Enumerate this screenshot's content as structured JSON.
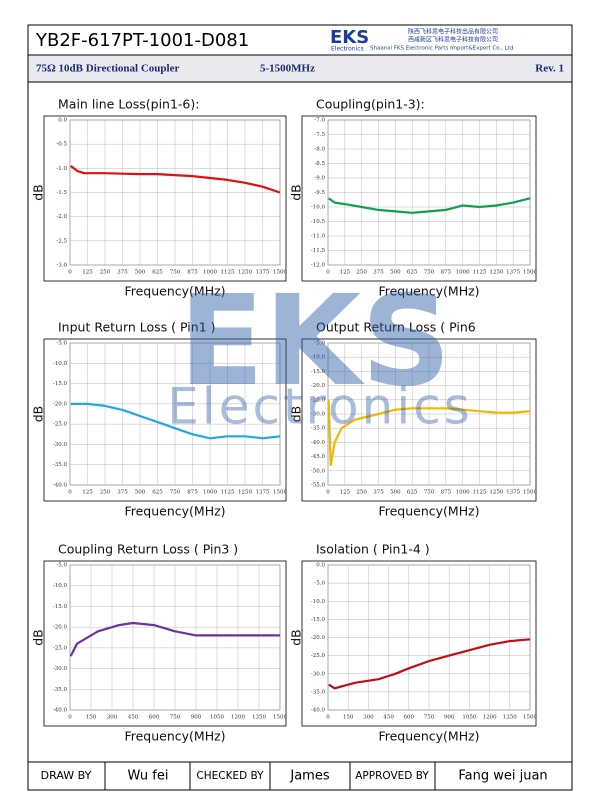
{
  "header": {
    "doc_no": "YB2F-617PT-1001-D081",
    "logo": "EKS",
    "logo_sub": "Electronics",
    "company_cn_1": "陕西飞科思电子科技出品有限公司",
    "company_cn_2": "西咸新区飞科思电子科技有限公司",
    "company_en": "Shaanxi FKS Electronic Parts Import&Export Co., Ltd",
    "product": "75Ω  10dB Directional Coupler",
    "band": "5-1500MHz",
    "rev": "Rev. 1"
  },
  "watermark": {
    "big": "EKS",
    "small": "Electronics"
  },
  "footer": {
    "draw_label": "DRAW BY",
    "draw": "Wu fei",
    "check_label": "CHECKED BY",
    "check": "James",
    "approve_label": "APPROVED BY",
    "approve": "Fang wei juan"
  },
  "chart_data": [
    {
      "type": "line",
      "title": "Main line Loss(pin1-6):",
      "xlabel": "Frequency(MHz)",
      "ylabel": "dB",
      "color": "#e01010",
      "xlim": [
        0,
        1500
      ],
      "xticks": [
        0,
        125,
        250,
        375,
        500,
        625,
        750,
        875,
        1000,
        1125,
        1250,
        1375,
        1500
      ],
      "ylim": [
        -3,
        0
      ],
      "yticks": [
        {
          "value": 0,
          "label": "0.0"
        },
        {
          "value": -0.5,
          "label": "-0.5"
        },
        {
          "value": -1,
          "label": "-1.0"
        },
        {
          "value": -1.5,
          "label": "-1.5"
        },
        {
          "value": -2,
          "label": "-2.0"
        },
        {
          "value": -2.5,
          "label": "-2.5"
        },
        {
          "value": -3,
          "label": "-3.0"
        }
      ],
      "grid": true,
      "x": [
        5,
        50,
        100,
        250,
        375,
        500,
        625,
        750,
        875,
        1000,
        1125,
        1250,
        1375,
        1500
      ],
      "values": [
        -0.95,
        -1.05,
        -1.1,
        -1.1,
        -1.11,
        -1.12,
        -1.12,
        -1.14,
        -1.16,
        -1.2,
        -1.24,
        -1.3,
        -1.38,
        -1.5
      ]
    },
    {
      "type": "line",
      "title": "Coupling(pin1-3):",
      "xlabel": "Frequency(MHz)",
      "ylabel": "dB",
      "color": "#10a050",
      "xlim": [
        0,
        1500
      ],
      "xticks": [
        0,
        125,
        250,
        375,
        500,
        625,
        750,
        875,
        1000,
        1125,
        1250,
        1375,
        1500
      ],
      "ylim": [
        -12,
        -7
      ],
      "yticks": [
        {
          "value": -7,
          "label": "-7.0"
        },
        {
          "value": -7.5,
          "label": "-7.5"
        },
        {
          "value": -8,
          "label": "-8.0"
        },
        {
          "value": -8.5,
          "label": "-8.5"
        },
        {
          "value": -9,
          "label": "-9.0"
        },
        {
          "value": -9.5,
          "label": "-9.5"
        },
        {
          "value": -10,
          "label": "-10.0"
        },
        {
          "value": -10.5,
          "label": "-10.5"
        },
        {
          "value": -11,
          "label": "-11.0"
        },
        {
          "value": -11.5,
          "label": "-11.5"
        },
        {
          "value": -12,
          "label": "-12.0"
        }
      ],
      "grid": true,
      "x": [
        5,
        50,
        125,
        250,
        375,
        500,
        625,
        750,
        875,
        1000,
        1125,
        1250,
        1375,
        1500
      ],
      "values": [
        -9.7,
        -9.85,
        -9.9,
        -10.0,
        -10.1,
        -10.15,
        -10.2,
        -10.15,
        -10.1,
        -9.95,
        -10.0,
        -9.95,
        -9.85,
        -9.7
      ]
    },
    {
      "type": "line",
      "title": "Input Return Loss ( Pin1 )",
      "xlabel": "Frequency(MHz)",
      "ylabel": "dB",
      "color": "#20a8e0",
      "xlim": [
        0,
        1500
      ],
      "xticks": [
        0,
        125,
        250,
        375,
        500,
        625,
        750,
        875,
        1000,
        1125,
        1250,
        1375,
        1500
      ],
      "ylim": [
        -40,
        -5
      ],
      "yticks": [
        {
          "value": -5,
          "label": "-5.0"
        },
        {
          "value": -10,
          "label": "-10.0"
        },
        {
          "value": -15,
          "label": "-15.0"
        },
        {
          "value": -20,
          "label": "-20.0"
        },
        {
          "value": -25,
          "label": "-25.0"
        },
        {
          "value": -30,
          "label": "-30.0"
        },
        {
          "value": -35,
          "label": "-35.0"
        },
        {
          "value": -40,
          "label": "-40.0"
        }
      ],
      "grid": true,
      "x": [
        5,
        125,
        250,
        375,
        500,
        625,
        750,
        875,
        1000,
        1125,
        1250,
        1375,
        1500
      ],
      "values": [
        -20,
        -20,
        -20.5,
        -21.5,
        -23,
        -24.5,
        -26,
        -27.5,
        -28.5,
        -28,
        -28,
        -28.5,
        -28
      ]
    },
    {
      "type": "line",
      "title": "Output Return Loss ( Pin6",
      "xlabel": "Frequency(MHz)",
      "ylabel": "dB",
      "color": "#f0b800",
      "xlim": [
        0,
        1500
      ],
      "xticks": [
        0,
        125,
        250,
        375,
        500,
        625,
        750,
        875,
        1000,
        1125,
        1250,
        1375,
        1500
      ],
      "ylim": [
        -55,
        -5
      ],
      "yticks": [
        {
          "value": -5,
          "label": "-5.0"
        },
        {
          "value": -10,
          "label": "-10.0"
        },
        {
          "value": -15,
          "label": "-15.0"
        },
        {
          "value": -20,
          "label": "-20.0"
        },
        {
          "value": -25,
          "label": "-25.0"
        },
        {
          "value": -30,
          "label": "-30.0"
        },
        {
          "value": -35,
          "label": "-35.0"
        },
        {
          "value": -40,
          "label": "-40.0"
        },
        {
          "value": -45,
          "label": "-45.0"
        },
        {
          "value": -50,
          "label": "-50.0"
        },
        {
          "value": -55,
          "label": "-55.0"
        }
      ],
      "grid": true,
      "x": [
        5,
        20,
        50,
        100,
        200,
        375,
        500,
        625,
        875,
        1000,
        1125,
        1250,
        1375,
        1500
      ],
      "values": [
        -25,
        -48,
        -40,
        -35,
        -32,
        -30,
        -28.5,
        -28,
        -28,
        -28.5,
        -29,
        -29.5,
        -29.5,
        -29
      ]
    },
    {
      "type": "line",
      "title": "Coupling Return Loss ( Pin3 )",
      "xlabel": "Frequency(MHz)",
      "ylabel": "dB",
      "color": "#7030a0",
      "xlim": [
        0,
        1500
      ],
      "xticks": [
        0,
        150,
        300,
        450,
        600,
        750,
        900,
        1050,
        1200,
        1350,
        1500
      ],
      "ylim": [
        -40,
        -5
      ],
      "yticks": [
        {
          "value": -5,
          "label": "-5.0"
        },
        {
          "value": -10,
          "label": "-10.0"
        },
        {
          "value": -15,
          "label": "-15.0"
        },
        {
          "value": -20,
          "label": "-20.0"
        },
        {
          "value": -25,
          "label": "-25.0"
        },
        {
          "value": -30,
          "label": "-30.0"
        },
        {
          "value": -35,
          "label": "-35.0"
        },
        {
          "value": -40,
          "label": "-40.0"
        }
      ],
      "grid": true,
      "x": [
        5,
        50,
        200,
        350,
        450,
        600,
        750,
        900,
        1050,
        1200,
        1350,
        1500
      ],
      "values": [
        -27,
        -24,
        -21,
        -19.5,
        -19,
        -19.5,
        -21,
        -22,
        -22,
        -22,
        -22,
        -22
      ]
    },
    {
      "type": "line",
      "title": "Isolation ( Pin1-4 )",
      "xlabel": "Frequency(MHz)",
      "ylabel": "dB",
      "color": "#c01010",
      "xlim": [
        0,
        1500
      ],
      "xticks": [
        0,
        150,
        300,
        450,
        600,
        750,
        900,
        1050,
        1200,
        1350,
        1500
      ],
      "ylim": [
        -40,
        0
      ],
      "yticks": [
        {
          "value": 0,
          "label": "0.0"
        },
        {
          "value": -5,
          "label": "-5.0"
        },
        {
          "value": -10,
          "label": "-10.0"
        },
        {
          "value": -15,
          "label": "-15.0"
        },
        {
          "value": -20,
          "label": "-20.0"
        },
        {
          "value": -25,
          "label": "-25.0"
        },
        {
          "value": -30,
          "label": "-30.0"
        },
        {
          "value": -35,
          "label": "-35.0"
        },
        {
          "value": -40,
          "label": "-40.0"
        }
      ],
      "grid": true,
      "x": [
        5,
        50,
        200,
        375,
        500,
        600,
        750,
        900,
        1050,
        1200,
        1350,
        1500
      ],
      "values": [
        -33,
        -34,
        -32.5,
        -31.5,
        -30,
        -28.5,
        -26.5,
        -25,
        -23.5,
        -22,
        -21,
        -20.5
      ]
    }
  ]
}
